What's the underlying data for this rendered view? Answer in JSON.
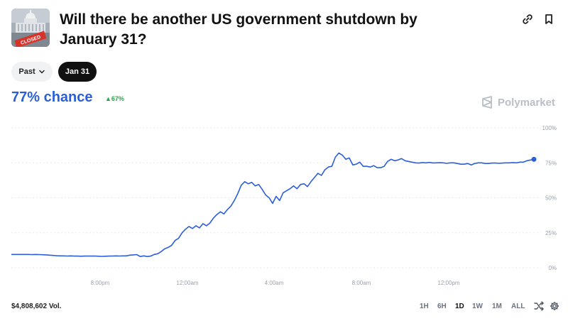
{
  "market": {
    "title": "Will there be another US government shutdown by January 31?",
    "thumbnail_stamp": "CLOSED",
    "icons": {
      "link": "link-icon",
      "bookmark": "bookmark-icon"
    }
  },
  "filters": {
    "past_label": "Past",
    "active_date_label": "Jan 31"
  },
  "probability": {
    "chance_label": "77% chance",
    "change_label": "67%",
    "change_color": "#2fa04a",
    "value": 77
  },
  "brand": {
    "name": "Polymarket"
  },
  "chart_data": {
    "type": "line",
    "series": [
      {
        "values": [
          9.5,
          9.5,
          9.5,
          9.5,
          9.5,
          9.5,
          9.4,
          9.5,
          9.4,
          9.3,
          9.2,
          9.0,
          8.8,
          8.6,
          8.5,
          8.5,
          8.4,
          8.5,
          8.3,
          8.3,
          8.2,
          8.3,
          8.4,
          8.3,
          8.4,
          8.2,
          8.1,
          8.2,
          8.3,
          8.4,
          8.5,
          8.4,
          8.5,
          8.5,
          9.0,
          9.2,
          9.4,
          8.0,
          8.5,
          8.0,
          8.3,
          9.5,
          10.0,
          11.5,
          13.5,
          14.5,
          16.0,
          19.5,
          21.0,
          25.0,
          27.5,
          29.5,
          28.0,
          30.0,
          28.5,
          31.5,
          30.0,
          32.0,
          35.5,
          38.0,
          40.0,
          38.5,
          41.5,
          44.0,
          48.0,
          53.0,
          59.0,
          61.5,
          60.0,
          61.0,
          58.5,
          59.5,
          56.0,
          52.0,
          50.0,
          46.0,
          51.0,
          48.0,
          53.5,
          55.0,
          56.5,
          58.5,
          56.5,
          59.5,
          60.0,
          58.0,
          61.5,
          64.5,
          67.5,
          66.0,
          70.0,
          72.0,
          72.5,
          79.0,
          82.0,
          80.5,
          77.5,
          78.5,
          73.5,
          74.0,
          75.5,
          72.5,
          72.5,
          72.0,
          73.0,
          71.5,
          71.5,
          72.5,
          76.0,
          77.5,
          76.5,
          77.0,
          78.0,
          76.5,
          76.0,
          75.5,
          75.0,
          74.8,
          75.2,
          75.0,
          75.3,
          74.9,
          75.0,
          75.1,
          75.0,
          74.6,
          75.0,
          75.0,
          74.5,
          74.0,
          74.0,
          74.5,
          73.5,
          74.5,
          75.0,
          75.0,
          74.5,
          74.5,
          74.8,
          74.8,
          74.6,
          74.8,
          75.0,
          75.0,
          75.2,
          75.0,
          75.5,
          75.5,
          76.5,
          77.0,
          77.5
        ]
      }
    ],
    "x_tick_labels": [
      "8:00pm",
      "12:00am",
      "4:00am",
      "8:00am",
      "12:00pm"
    ],
    "y_tick_labels": [
      "100%",
      "75%",
      "50%",
      "25%",
      "0%"
    ],
    "ylim": [
      0,
      100
    ],
    "line_color": "#2b5fd9",
    "grid": true,
    "gridline_values": [
      100,
      75,
      50,
      25,
      0
    ]
  },
  "footer": {
    "volume_label": "$4,808,602 Vol.",
    "timeframes": [
      "1H",
      "6H",
      "1D",
      "1W",
      "1M",
      "ALL"
    ],
    "active_timeframe": "1D",
    "icons": {
      "shuffle": "shuffle-icon",
      "settings": "gear-icon"
    }
  }
}
